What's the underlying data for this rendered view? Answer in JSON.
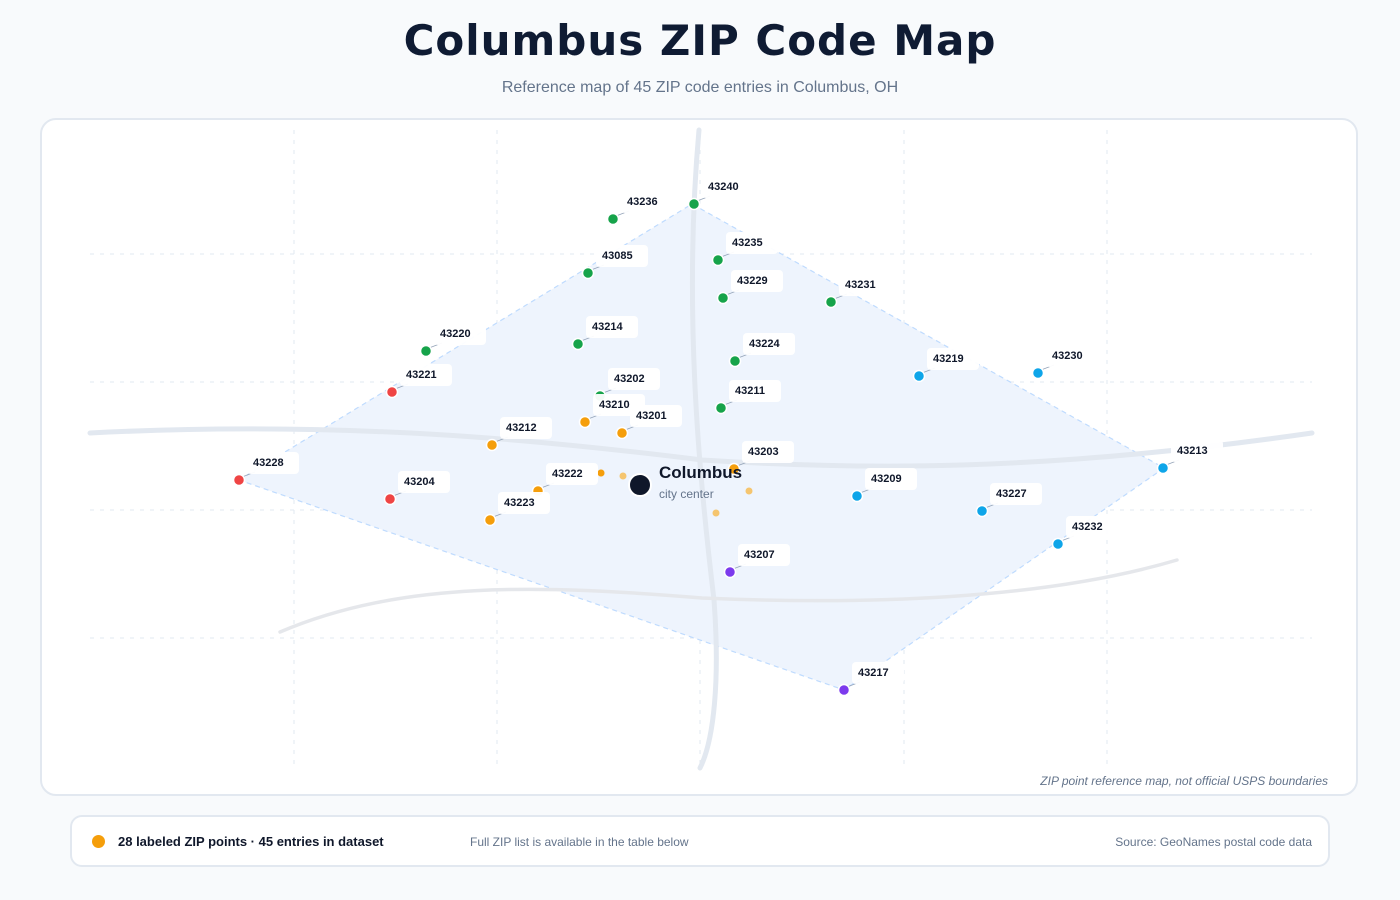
{
  "header": {
    "title": "Columbus ZIP Code Map",
    "subtitle": "Reference map of 45 ZIP code entries in Columbus, OH"
  },
  "map": {
    "center": {
      "name": "Columbus",
      "caption": "city center"
    },
    "note": "ZIP point reference map, not official USPS boundaries",
    "colors": {
      "north": "#16a34a",
      "east": "#0ea5e9",
      "west": "#ef4444",
      "central": "#f59e0b",
      "south": "#7c3aed",
      "center": "#0f172a",
      "area_fill": "#eef4fd",
      "roads": "#e2e8f0"
    },
    "zips": [
      {
        "zip": "43240",
        "group": "north"
      },
      {
        "zip": "43236",
        "group": "north"
      },
      {
        "zip": "43235",
        "group": "north"
      },
      {
        "zip": "43085",
        "group": "north"
      },
      {
        "zip": "43229",
        "group": "north"
      },
      {
        "zip": "43231",
        "group": "north"
      },
      {
        "zip": "43214",
        "group": "north"
      },
      {
        "zip": "43220",
        "group": "north"
      },
      {
        "zip": "43224",
        "group": "north"
      },
      {
        "zip": "43202",
        "group": "north"
      },
      {
        "zip": "43211",
        "group": "north"
      },
      {
        "zip": "43219",
        "group": "east"
      },
      {
        "zip": "43230",
        "group": "east"
      },
      {
        "zip": "43213",
        "group": "east"
      },
      {
        "zip": "43209",
        "group": "east"
      },
      {
        "zip": "43227",
        "group": "east"
      },
      {
        "zip": "43232",
        "group": "east"
      },
      {
        "zip": "43221",
        "group": "west"
      },
      {
        "zip": "43228",
        "group": "west"
      },
      {
        "zip": "43204",
        "group": "west"
      },
      {
        "zip": "43210",
        "group": "central"
      },
      {
        "zip": "43212",
        "group": "central"
      },
      {
        "zip": "43201",
        "group": "central"
      },
      {
        "zip": "43203",
        "group": "central"
      },
      {
        "zip": "43222",
        "group": "central"
      },
      {
        "zip": "43223",
        "group": "central"
      },
      {
        "zip": "43207",
        "group": "south"
      },
      {
        "zip": "43217",
        "group": "south"
      }
    ]
  },
  "legend": {
    "summary": "28 labeled ZIP points · 45 entries in dataset",
    "hint": "Full ZIP list is available in the table below",
    "source": "Source: GeoNames postal code data"
  }
}
